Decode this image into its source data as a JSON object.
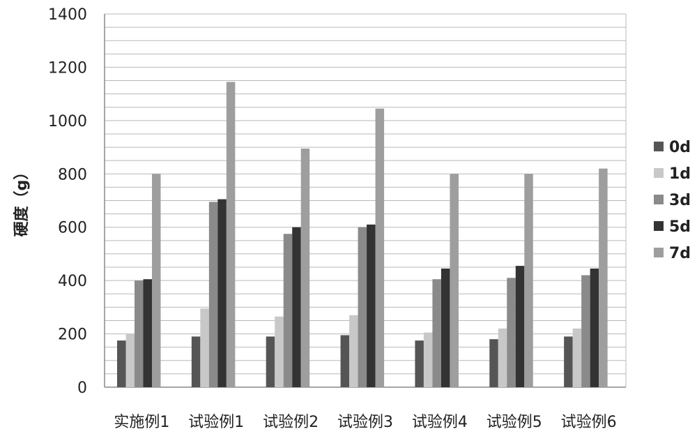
{
  "chart_data": {
    "type": "bar",
    "ylabel": "硬度（g）",
    "xlabel": "",
    "ylim": [
      0,
      1400
    ],
    "yticks": [
      0,
      200,
      400,
      600,
      800,
      1000,
      1200,
      1400
    ],
    "grid": true,
    "legend_position": "right",
    "categories": [
      "实施例1",
      "试验例1",
      "试验例2",
      "试验例3",
      "试验例4",
      "试验例5",
      "试验例6"
    ],
    "series": [
      {
        "name": "0d",
        "color": "#555555",
        "values": [
          175,
          190,
          190,
          195,
          175,
          180,
          190
        ]
      },
      {
        "name": "1d",
        "color": "#c8c8c8",
        "values": [
          200,
          295,
          265,
          270,
          205,
          220,
          220
        ]
      },
      {
        "name": "3d",
        "color": "#8a8a8a",
        "values": [
          400,
          695,
          575,
          600,
          405,
          410,
          420
        ]
      },
      {
        "name": "5d",
        "color": "#333333",
        "values": [
          405,
          705,
          600,
          610,
          445,
          455,
          445
        ]
      },
      {
        "name": "7d",
        "color": "#9e9e9e",
        "values": [
          800,
          1145,
          895,
          1045,
          800,
          800,
          820
        ]
      }
    ]
  }
}
